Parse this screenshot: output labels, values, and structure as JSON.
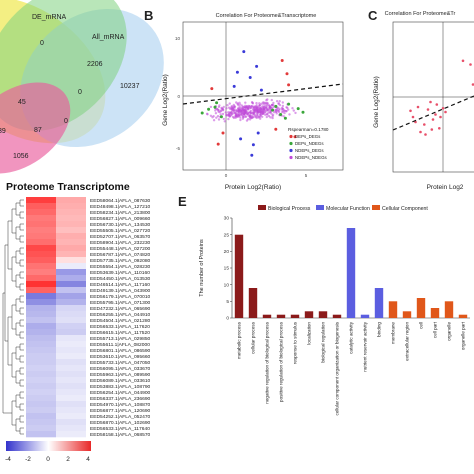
{
  "panels": {
    "b": "B",
    "c": "C",
    "e": "E"
  },
  "venn": {
    "labels": {
      "de_mrna": "DE_mRNA",
      "all_mrna": "All_mRNA"
    },
    "counts": [
      "0",
      "2206",
      "10237",
      "0",
      "45",
      "87",
      "0",
      "39",
      "1056"
    ],
    "colors": {
      "yellow": "#f0ea5a",
      "green": "#7fd27f",
      "blue": "#b6d7f2",
      "pink": "#ea5c9c"
    }
  },
  "scatter_b": {
    "title": "Correlation For Proteome&Transcriptome",
    "xlabel": "Protein Log2(Ratio)",
    "ylabel": "Gene Log2(Ratio)",
    "legend_title": "Rspearman=0.1780",
    "legend": [
      {
        "label": "DEPs_DEGs",
        "color": "#e23a3a"
      },
      {
        "label": "DEPs_NDEGs",
        "color": "#3aa63a"
      },
      {
        "label": "NDEPs_DEGs",
        "color": "#3a3ad8"
      },
      {
        "label": "NDEPs_NDEGs",
        "color": "#c04ad8"
      }
    ]
  },
  "scatter_c": {
    "title": "Correlation For Proteome&Tr",
    "xlabel": "Protein Log2",
    "ylabel": "Gene Log2(Ratio)"
  },
  "heatmap": {
    "title": "Proteome Transcriptome",
    "scale_ticks": [
      "-4",
      "-2",
      "0",
      "2",
      "4"
    ],
    "rows": [
      {
        "label": "EED58064.1|AFLA_087630",
        "p": 3.6,
        "t": 1.6
      },
      {
        "label": "EED48498.1|AFLA_127210",
        "p": 3.0,
        "t": 1.5
      },
      {
        "label": "EED58234.1|AFLA_213800",
        "p": 2.8,
        "t": 1.4
      },
      {
        "label": "EED56827.1|AFLA_009660",
        "p": 2.5,
        "t": 1.3
      },
      {
        "label": "EED56730.1|AFLA_134530",
        "p": 2.6,
        "t": 1.4
      },
      {
        "label": "EED55505.1|AFLA_027720",
        "p": 2.4,
        "t": 1.2
      },
      {
        "label": "EED52707.1|AFLA_063570",
        "p": 2.5,
        "t": 1.5
      },
      {
        "label": "EED58904.1|AFLA_232230",
        "p": 2.7,
        "t": 1.4
      },
      {
        "label": "EED55448.1|AFLA_027200",
        "p": 3.4,
        "t": 1.6
      },
      {
        "label": "EED56787.1|AFLA_074820",
        "p": 3.2,
        "t": 1.4
      },
      {
        "label": "EED57735.1|AFLA_092080",
        "p": 3.0,
        "t": 0.6
      },
      {
        "label": "EED55554.1|AFLA_028230",
        "p": 2.6,
        "t": -0.4
      },
      {
        "label": "EED53639.1|AFLA_110160",
        "p": 2.4,
        "t": -2.0
      },
      {
        "label": "EED54450.1|AFLA_013530",
        "p": 2.8,
        "t": -1.6
      },
      {
        "label": "EED46514.1|AFLA_117160",
        "p": 3.8,
        "t": -2.4
      },
      {
        "label": "EED49139.1|AFLA_043900",
        "p": 2.9,
        "t": -1.2
      },
      {
        "label": "EED56179.1|AFLA_070010",
        "p": -2.6,
        "t": -1.8
      },
      {
        "label": "EED55795.1|AFLA_071300",
        "p": -2.2,
        "t": -1.5
      },
      {
        "label": "EED47232.1|AFLA_065690",
        "p": -1.5,
        "t": -0.8
      },
      {
        "label": "EED56255.1|AFLA_044910",
        "p": -1.4,
        "t": -0.7
      },
      {
        "label": "EED54504.1|AFLA_021280",
        "p": -1.2,
        "t": -0.6
      },
      {
        "label": "EED56533.1|AFLA_117620",
        "p": -1.6,
        "t": -0.9
      },
      {
        "label": "EED56615.1|AFLA_117520",
        "p": -1.5,
        "t": -1.0
      },
      {
        "label": "EED55713.1|AFLA_029850",
        "p": -1.3,
        "t": -0.5
      },
      {
        "label": "EED55611.1|AFLA_082000",
        "p": -1.2,
        "t": -0.4
      },
      {
        "label": "EED56801.1|AFLA_086590",
        "p": -1.1,
        "t": -0.5
      },
      {
        "label": "EED53610.1|AFLA_095660",
        "p": -1.0,
        "t": -0.4
      },
      {
        "label": "EED55733.1|AFLA_047050",
        "p": -1.0,
        "t": -0.6
      },
      {
        "label": "EED56095.1|AFLA_033670",
        "p": -0.9,
        "t": -0.5
      },
      {
        "label": "EED55963.1|AFLA_089590",
        "p": -1.0,
        "t": -0.6
      },
      {
        "label": "EED56089.1|AFLA_033610",
        "p": -0.9,
        "t": -0.5
      },
      {
        "label": "EED53883.1|AFLA_108790",
        "p": -1.0,
        "t": -0.6
      },
      {
        "label": "EED56254.1|AFLA_044900",
        "p": -0.9,
        "t": -0.5
      },
      {
        "label": "EED56337.1|AFLA_236690",
        "p": -1.0,
        "t": -0.4
      },
      {
        "label": "EED54970.1|AFLA_108870",
        "p": -1.1,
        "t": -0.6
      },
      {
        "label": "EED56877.1|AFLA_120690",
        "p": -1.0,
        "t": -0.5
      },
      {
        "label": "EED54252.1|AFLA_052470",
        "p": -1.2,
        "t": -0.4
      },
      {
        "label": "EED56870.1|AFLA_102690",
        "p": -1.1,
        "t": -0.6
      },
      {
        "label": "EED56533.1|AFLA_117640",
        "p": -1.0,
        "t": -0.5
      },
      {
        "label": "EED58158.1|AFLA_068570",
        "p": -1.2,
        "t": -0.4
      }
    ]
  },
  "chart_data": [
    {
      "type": "scatter",
      "title": "Correlation For Proteome&Transcriptome",
      "xlabel": "Protein Log2(Ratio)",
      "ylabel": "Gene Log2(Ratio)",
      "legend_title": "Rspearman=0.1780",
      "legend_position": "bottom-right",
      "x_ticks": [
        "0",
        "5"
      ],
      "xlim": [
        -4,
        6
      ],
      "ylim": [
        -8,
        12
      ],
      "series": [
        {
          "name": "DEPs_DEGs",
          "points": [
            [
              -1.8,
              -4.5
            ],
            [
              2.5,
              5.0
            ],
            [
              3.0,
              -3.5
            ],
            [
              -2.2,
              3.0
            ],
            [
              1.8,
              -2.5
            ],
            [
              2.2,
              6.8
            ],
            [
              -1.5,
              -3.0
            ],
            [
              2.6,
              3.5
            ]
          ]
        },
        {
          "name": "DEPs_NDEGs",
          "points": [
            [
              -2.0,
              0.5
            ],
            [
              -1.6,
              -0.8
            ],
            [
              -2.4,
              0.2
            ],
            [
              1.8,
              0.6
            ],
            [
              2.1,
              -0.5
            ],
            [
              2.6,
              0.9
            ],
            [
              3.2,
              0.3
            ],
            [
              -1.9,
              1.1
            ],
            [
              2.4,
              -1.0
            ],
            [
              -2.8,
              -0.3
            ],
            [
              1.6,
              0.1
            ],
            [
              3.5,
              -0.2
            ]
          ]
        },
        {
          "name": "NDEPs_DEGs",
          "points": [
            [
              0.2,
              4.5
            ],
            [
              -0.4,
              -3.8
            ],
            [
              0.6,
              6.0
            ],
            [
              -0.8,
              3.3
            ],
            [
              0.4,
              -4.6
            ],
            [
              0.9,
              2.8
            ],
            [
              -0.2,
              8.0
            ],
            [
              0.3,
              -6.0
            ],
            [
              -0.6,
              5.2
            ],
            [
              0.7,
              -3.0
            ]
          ]
        },
        {
          "name": "NDEPs_NDEGs",
          "points": [
            [
              0,
              0
            ]
          ]
        }
      ],
      "trend": "dashed black line, slope ~0.18"
    },
    {
      "type": "scatter",
      "title": "Correlation For Proteome&Tr",
      "xlabel": "Protein Log2",
      "ylabel": "Gene Log2(Ratio)",
      "xlim": [
        -4,
        4
      ],
      "ylim": [
        -6,
        6
      ],
      "series": [
        {
          "name": "DEPs_DEGs",
          "points": [
            [
              -2.4,
              -1.6
            ],
            [
              -2.0,
              -0.8
            ],
            [
              -1.5,
              -2.2
            ],
            [
              -1.2,
              -1.0
            ],
            [
              -0.8,
              -1.8
            ],
            [
              -0.5,
              -0.6
            ],
            [
              -0.3,
              -2.5
            ],
            [
              0.2,
              -1.2
            ],
            [
              -1.8,
              -2.8
            ],
            [
              -1.0,
              -0.4
            ],
            [
              -2.2,
              -2.0
            ],
            [
              -0.6,
              -1.4
            ],
            [
              0.0,
              -0.9
            ],
            [
              -1.4,
              -3.0
            ],
            [
              -0.9,
              -2.6
            ],
            [
              -0.2,
              -1.6
            ],
            [
              2.2,
              2.6
            ],
            [
              2.6,
              3.2
            ],
            [
              2.8,
              1.6
            ],
            [
              3.0,
              2.2
            ],
            [
              2.4,
              1.0
            ],
            [
              1.6,
              2.9
            ],
            [
              3.2,
              1.3
            ],
            [
              -2.6,
              -1.1
            ]
          ]
        }
      ],
      "trend": "dashed black line"
    },
    {
      "type": "bar",
      "ylabel": "The number of Proteins",
      "ylim": [
        0,
        30
      ],
      "y_ticks": [
        0,
        5,
        10,
        15,
        20,
        25,
        30
      ],
      "legend": [
        {
          "name": "Biological Process",
          "color": "#8b1a1a"
        },
        {
          "name": "Molecular Function",
          "color": "#5b5ee0"
        },
        {
          "name": "Cellular Component",
          "color": "#e0571a"
        }
      ],
      "categories": [
        "metabolic process",
        "cellular process",
        "negative regulation of biological process",
        "positive regulation of biological process",
        "response to stimulus",
        "localization",
        "biological regulation",
        "cellular component organization or biogenesis",
        "catalytic activity",
        "nutrient reservoir activity",
        "binding",
        "membrane",
        "extracellular region",
        "cell",
        "cell part",
        "organelle",
        "organelle part"
      ],
      "values": [
        25,
        9,
        1,
        1,
        1,
        2,
        2,
        1,
        27,
        1,
        9,
        5,
        2,
        6,
        3,
        5,
        1
      ],
      "groups": [
        "BP",
        "BP",
        "BP",
        "BP",
        "BP",
        "BP",
        "BP",
        "BP",
        "MF",
        "MF",
        "MF",
        "CC",
        "CC",
        "CC",
        "CC",
        "CC",
        "CC"
      ]
    },
    {
      "type": "heatmap",
      "title": "Proteome Transcriptome",
      "columns": [
        "Proteome",
        "Transcriptome"
      ],
      "color_range": [
        -4,
        4
      ],
      "colors": {
        "low": "#3333cc",
        "mid": "#ffffff",
        "high": "#e82828"
      }
    }
  ]
}
